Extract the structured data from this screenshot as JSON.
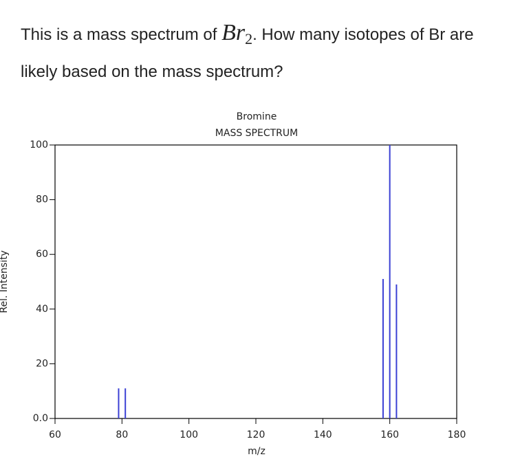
{
  "question": {
    "prefix": "This is a mass spectrum of",
    "math": "Br",
    "subscript": "2",
    "suffix": ". How many isotopes of Br are likely based on the mass spectrum?"
  },
  "chart_data": {
    "type": "stem",
    "title": "Bromine",
    "subtitle": "MASS SPECTRUM",
    "x_label": "m/z",
    "y_label": "Rel. Intensity",
    "x": [
      79,
      81,
      158,
      160,
      162
    ],
    "values": [
      11,
      11,
      51,
      100,
      49
    ],
    "color": "#3a3fd4",
    "xlim": [
      60,
      180
    ],
    "xticks": [
      60,
      80,
      100,
      120,
      140,
      160,
      180
    ],
    "ylim": [
      0,
      100
    ],
    "yticks": [
      {
        "value": 0,
        "label": "0.0"
      },
      20,
      40,
      60,
      80,
      100
    ]
  }
}
